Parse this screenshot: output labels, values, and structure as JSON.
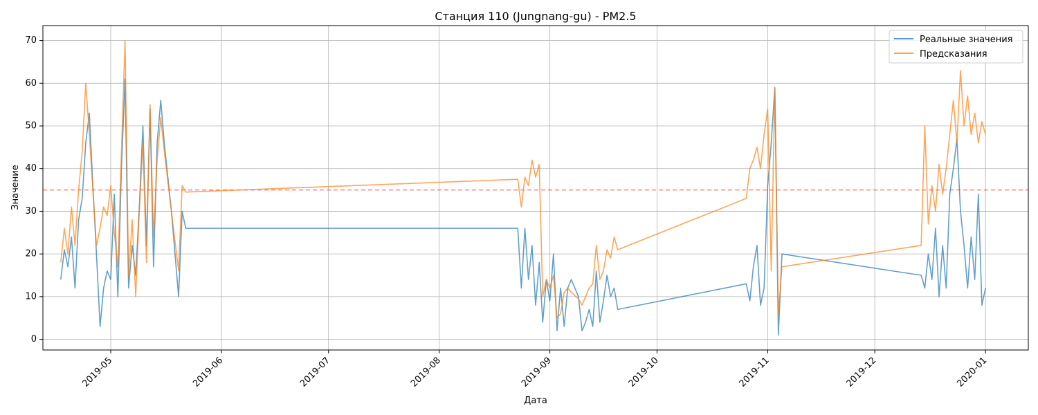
{
  "chart_data": {
    "type": "line",
    "title": "Станция 110 (Jungnang-gu) - PM2.5",
    "xlabel": "Дата",
    "ylabel": "Значение",
    "xlim": [
      "2019-04-12",
      "2020-01-13"
    ],
    "ylim": [
      -2.5,
      73.5
    ],
    "grid": true,
    "legend_position": "top-right",
    "x_ticks": [
      "2019-05",
      "2019-06",
      "2019-07",
      "2019-08",
      "2019-09",
      "2019-10",
      "2019-11",
      "2019-12",
      "2020-01"
    ],
    "y_ticks": [
      0,
      10,
      20,
      30,
      40,
      50,
      60,
      70
    ],
    "threshold": {
      "value": 35,
      "color": "#ff0000",
      "style": "dashed"
    },
    "series": [
      {
        "name": "Реальные значения",
        "color": "#1f77b4",
        "points": [
          [
            "2019-04-17",
            14
          ],
          [
            "2019-04-18",
            21
          ],
          [
            "2019-04-19",
            17
          ],
          [
            "2019-04-20",
            24
          ],
          [
            "2019-04-21",
            12
          ],
          [
            "2019-04-22",
            28
          ],
          [
            "2019-04-23",
            33
          ],
          [
            "2019-04-24",
            46
          ],
          [
            "2019-04-25",
            53
          ],
          [
            "2019-04-26",
            36
          ],
          [
            "2019-04-27",
            20
          ],
          [
            "2019-04-28",
            3
          ],
          [
            "2019-04-29",
            12
          ],
          [
            "2019-04-30",
            16
          ],
          [
            "2019-05-01",
            14
          ],
          [
            "2019-05-02",
            34
          ],
          [
            "2019-05-03",
            10
          ],
          [
            "2019-05-04",
            40
          ],
          [
            "2019-05-05",
            61
          ],
          [
            "2019-05-06",
            12
          ],
          [
            "2019-05-07",
            22
          ],
          [
            "2019-05-08",
            15
          ],
          [
            "2019-05-09",
            31
          ],
          [
            "2019-05-10",
            50
          ],
          [
            "2019-05-11",
            22
          ],
          [
            "2019-05-12",
            54
          ],
          [
            "2019-05-13",
            17
          ],
          [
            "2019-05-14",
            46
          ],
          [
            "2019-05-15",
            56
          ],
          [
            "2019-05-16",
            46
          ],
          [
            "2019-05-18",
            30
          ],
          [
            "2019-05-20",
            10
          ],
          [
            "2019-05-21",
            30
          ],
          [
            "2019-05-22",
            26
          ],
          [
            "2019-08-23",
            26
          ],
          [
            "2019-08-24",
            12
          ],
          [
            "2019-08-25",
            26
          ],
          [
            "2019-08-26",
            14
          ],
          [
            "2019-08-27",
            22
          ],
          [
            "2019-08-28",
            8
          ],
          [
            "2019-08-29",
            18
          ],
          [
            "2019-08-30",
            4
          ],
          [
            "2019-08-31",
            14
          ],
          [
            "2019-09-01",
            9
          ],
          [
            "2019-09-02",
            20
          ],
          [
            "2019-09-03",
            2
          ],
          [
            "2019-09-04",
            12
          ],
          [
            "2019-09-05",
            3
          ],
          [
            "2019-09-06",
            12
          ],
          [
            "2019-09-07",
            14
          ],
          [
            "2019-09-09",
            10
          ],
          [
            "2019-09-10",
            2
          ],
          [
            "2019-09-11",
            4
          ],
          [
            "2019-09-12",
            7
          ],
          [
            "2019-09-13",
            3
          ],
          [
            "2019-09-14",
            16
          ],
          [
            "2019-09-15",
            4
          ],
          [
            "2019-09-16",
            9
          ],
          [
            "2019-09-17",
            15
          ],
          [
            "2019-09-18",
            10
          ],
          [
            "2019-09-19",
            12
          ],
          [
            "2019-09-20",
            7
          ],
          [
            "2019-10-26",
            13
          ],
          [
            "2019-10-27",
            9
          ],
          [
            "2019-10-28",
            17
          ],
          [
            "2019-10-29",
            22
          ],
          [
            "2019-10-30",
            8
          ],
          [
            "2019-10-31",
            12
          ],
          [
            "2019-11-01",
            36
          ],
          [
            "2019-11-02",
            46
          ],
          [
            "2019-11-03",
            59
          ],
          [
            "2019-11-04",
            1
          ],
          [
            "2019-11-05",
            20
          ],
          [
            "2019-12-14",
            15
          ],
          [
            "2019-12-15",
            12
          ],
          [
            "2019-12-16",
            20
          ],
          [
            "2019-12-17",
            14
          ],
          [
            "2019-12-18",
            26
          ],
          [
            "2019-12-19",
            10
          ],
          [
            "2019-12-20",
            22
          ],
          [
            "2019-12-21",
            12
          ],
          [
            "2019-12-22",
            34
          ],
          [
            "2019-12-23",
            40
          ],
          [
            "2019-12-24",
            47
          ],
          [
            "2019-12-25",
            30
          ],
          [
            "2019-12-26",
            22
          ],
          [
            "2019-12-27",
            12
          ],
          [
            "2019-12-28",
            24
          ],
          [
            "2019-12-29",
            14
          ],
          [
            "2019-12-30",
            34
          ],
          [
            "2019-12-31",
            8
          ],
          [
            "2020-01-01",
            12
          ]
        ]
      },
      {
        "name": "Предсказания",
        "color": "#ff7f0e",
        "points": [
          [
            "2019-04-17",
            18
          ],
          [
            "2019-04-18",
            26
          ],
          [
            "2019-04-19",
            20
          ],
          [
            "2019-04-20",
            31
          ],
          [
            "2019-04-21",
            22
          ],
          [
            "2019-04-22",
            35
          ],
          [
            "2019-04-23",
            44
          ],
          [
            "2019-04-24",
            60
          ],
          [
            "2019-04-25",
            48
          ],
          [
            "2019-04-26",
            35
          ],
          [
            "2019-04-27",
            22
          ],
          [
            "2019-04-28",
            26
          ],
          [
            "2019-04-29",
            31
          ],
          [
            "2019-04-30",
            29
          ],
          [
            "2019-05-01",
            36
          ],
          [
            "2019-05-02",
            25
          ],
          [
            "2019-05-03",
            17
          ],
          [
            "2019-05-04",
            44
          ],
          [
            "2019-05-05",
            70
          ],
          [
            "2019-05-06",
            15
          ],
          [
            "2019-05-07",
            28
          ],
          [
            "2019-05-08",
            10
          ],
          [
            "2019-05-09",
            30
          ],
          [
            "2019-05-10",
            46
          ],
          [
            "2019-05-11",
            18
          ],
          [
            "2019-05-12",
            55
          ],
          [
            "2019-05-13",
            24
          ],
          [
            "2019-05-14",
            42
          ],
          [
            "2019-05-15",
            52
          ],
          [
            "2019-05-16",
            44
          ],
          [
            "2019-05-18",
            30
          ],
          [
            "2019-05-20",
            16
          ],
          [
            "2019-05-21",
            36
          ],
          [
            "2019-05-22",
            34.5
          ],
          [
            "2019-08-23",
            37.5
          ],
          [
            "2019-08-24",
            31
          ],
          [
            "2019-08-25",
            38
          ],
          [
            "2019-08-26",
            36
          ],
          [
            "2019-08-27",
            42
          ],
          [
            "2019-08-28",
            38
          ],
          [
            "2019-08-29",
            41
          ],
          [
            "2019-08-30",
            10
          ],
          [
            "2019-08-31",
            14
          ],
          [
            "2019-09-01",
            12
          ],
          [
            "2019-09-02",
            15
          ],
          [
            "2019-09-03",
            5
          ],
          [
            "2019-09-04",
            6
          ],
          [
            "2019-09-05",
            11
          ],
          [
            "2019-09-06",
            12
          ],
          [
            "2019-09-07",
            11
          ],
          [
            "2019-09-09",
            9.5
          ],
          [
            "2019-09-10",
            8
          ],
          [
            "2019-09-11",
            10
          ],
          [
            "2019-09-12",
            12
          ],
          [
            "2019-09-13",
            13
          ],
          [
            "2019-09-14",
            22
          ],
          [
            "2019-09-15",
            14
          ],
          [
            "2019-09-16",
            16
          ],
          [
            "2019-09-17",
            21
          ],
          [
            "2019-09-18",
            19
          ],
          [
            "2019-09-19",
            24
          ],
          [
            "2019-09-20",
            21
          ],
          [
            "2019-10-26",
            33
          ],
          [
            "2019-10-27",
            40
          ],
          [
            "2019-10-28",
            42
          ],
          [
            "2019-10-29",
            45
          ],
          [
            "2019-10-30",
            40
          ],
          [
            "2019-10-31",
            48
          ],
          [
            "2019-11-01",
            54
          ],
          [
            "2019-11-02",
            16
          ],
          [
            "2019-11-03",
            59
          ],
          [
            "2019-11-04",
            6
          ],
          [
            "2019-11-05",
            17
          ],
          [
            "2019-12-14",
            22
          ],
          [
            "2019-12-15",
            50
          ],
          [
            "2019-12-16",
            27
          ],
          [
            "2019-12-17",
            36
          ],
          [
            "2019-12-18",
            30
          ],
          [
            "2019-12-19",
            41
          ],
          [
            "2019-12-20",
            34
          ],
          [
            "2019-12-21",
            40
          ],
          [
            "2019-12-22",
            48
          ],
          [
            "2019-12-23",
            56
          ],
          [
            "2019-12-24",
            46
          ],
          [
            "2019-12-25",
            63
          ],
          [
            "2019-12-26",
            50
          ],
          [
            "2019-12-27",
            57
          ],
          [
            "2019-12-28",
            48
          ],
          [
            "2019-12-29",
            53
          ],
          [
            "2019-12-30",
            46
          ],
          [
            "2019-12-31",
            51
          ],
          [
            "2020-01-01",
            48
          ]
        ]
      }
    ]
  }
}
